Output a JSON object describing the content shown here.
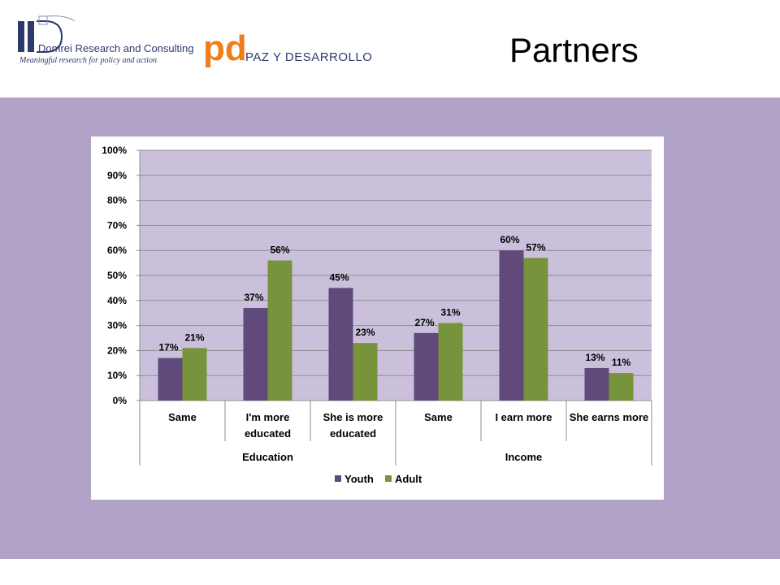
{
  "header": {
    "title": "Partners",
    "logos": [
      {
        "name": "Domrei Research and Consulting",
        "tagline": "Meaningful research for policy and action"
      },
      {
        "name": "PAZ Y DESARROLLO",
        "mark": "pd"
      }
    ]
  },
  "colors": {
    "band": "#b1a2c8",
    "plot_bg": "#cbc0dc",
    "youth": "#604a7b",
    "adult": "#77933c",
    "brand_blue": "#2d3a6e",
    "brand_orange": "#f07d1a"
  },
  "chart_data": {
    "type": "bar",
    "categories": [
      "Same",
      "I'm more educated",
      "She is more educated",
      "Same",
      "I earn more",
      "She earns more"
    ],
    "category_lines": [
      [
        "Same"
      ],
      [
        "I'm more",
        "educated"
      ],
      [
        "She is more",
        "educated"
      ],
      [
        "Same"
      ],
      [
        "I earn more"
      ],
      [
        "She earns more"
      ]
    ],
    "groups": [
      {
        "label": "Education",
        "span": [
          0,
          2
        ]
      },
      {
        "label": "Income",
        "span": [
          3,
          5
        ]
      }
    ],
    "series": [
      {
        "name": "Youth",
        "values": [
          17,
          37,
          45,
          27,
          60,
          13
        ],
        "labels": [
          "17%",
          "37%",
          "45%",
          "27%",
          "60%",
          "13%"
        ]
      },
      {
        "name": "Adult",
        "values": [
          21,
          56,
          23,
          31,
          57,
          11
        ],
        "labels": [
          "21%",
          "56%",
          "23%",
          "31%",
          "57%",
          "11%"
        ]
      }
    ],
    "yticks": [
      "0%",
      "10%",
      "20%",
      "30%",
      "40%",
      "50%",
      "60%",
      "70%",
      "80%",
      "90%",
      "100%"
    ],
    "ylim": [
      0,
      100
    ],
    "grid": true,
    "legend": "bottom"
  }
}
